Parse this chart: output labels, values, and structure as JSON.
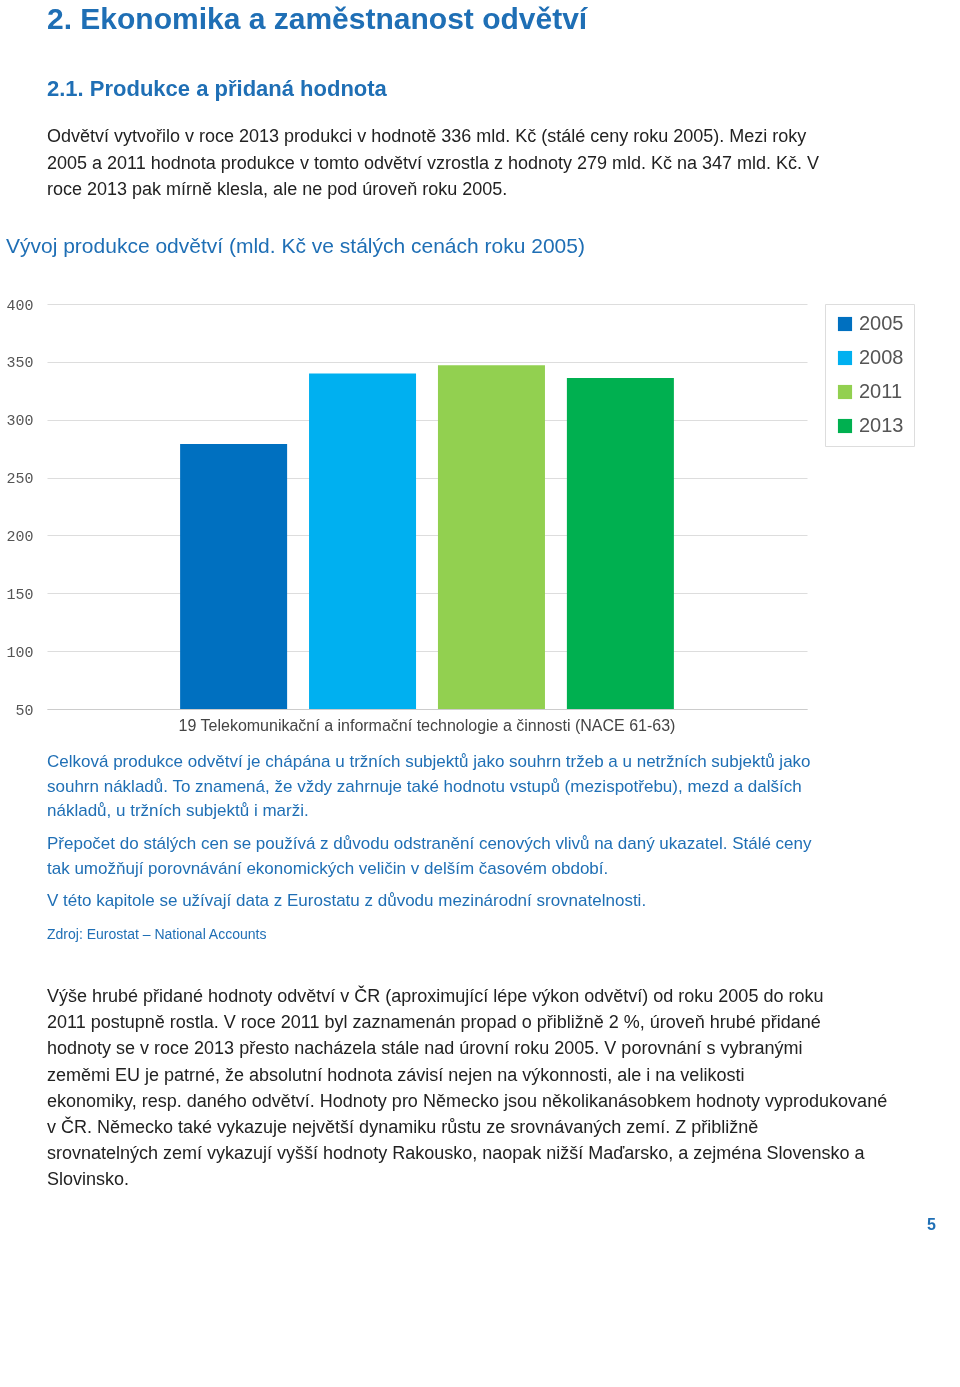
{
  "chart_data": {
    "type": "bar",
    "title": "Vývoj produkce odvětví (mld. Kč ve stálých cenách roku 2005)",
    "categories": [
      "19 Telekomunikační a informační technologie a činnosti (NACE 61-63)"
    ],
    "series": [
      {
        "name": "2005",
        "color": "#0070c0",
        "values": [
          279
        ]
      },
      {
        "name": "2008",
        "color": "#00b0f0",
        "values": [
          340
        ]
      },
      {
        "name": "2011",
        "color": "#92d050",
        "values": [
          347
        ]
      },
      {
        "name": "2013",
        "color": "#00b050",
        "values": [
          336
        ]
      }
    ],
    "ylim": [
      50,
      400
    ],
    "yticks": [
      50,
      100,
      150,
      200,
      250,
      300,
      350,
      400
    ],
    "grid": "y",
    "legend": "right",
    "annotations": [
      "2. Ekonomika a zaměstnanost odvětví",
      "2.1. Produkce a přidaná hodnota",
      "Odvětví vytvořilo v roce 2013 produkci v hodnotě 336 mld. Kč (stálé ceny roku 2005). Mezi roky 2005 a 2011 hodnota produkce v tomto odvětví vzrostla z hodnoty 279 mld. Kč na 347 mld. Kč. V roce 2013 pak mírně klesla, ale ne pod úroveň roku 2005.",
      "Celková produkce odvětví je chápána u tržních subjektů jako souhrn tržeb a u netržních subjektů jako souhrn nákladů. To znamená, že vždy zahrnuje také hodnotu vstupů (mezispotřebu), mezd a dalších nákladů, u tržních subjektů i marži.",
      "Přepočet do stálých cen se používá z důvodu odstranění cenových vlivů na daný ukazatel. Stálé ceny tak umožňují porovnávání ekonomických veličin v delším časovém období.",
      "V této kapitole se užívají data z Eurostatu z důvodu mezinárodní srovnatelnosti.",
      "Zdroj: Eurostat – National Accounts",
      "Výše hrubé přidané hodnoty odvětví v ČR (aproximující lépe výkon odvětví) od roku 2005 do roku 2011 postupně rostla. V roce 2011 byl zaznamenán propad o přibližně 2 %, úroveň hrubé přidané hodnoty se v roce 2013 přesto nacházela stále nad úrovní roku 2005. V porovnání s vybranými zeměmi EU je patrné, že absolutní hodnota závisí nejen na výkonnosti, ale i na velikosti ekonomiky, resp. daného odvětví. Hodnoty pro Německo jsou několikanásobkem hodnoty vyprodukované v ČR. Německo také vykazuje největší dynamiku růstu ze srovnávaných zemí. Z přibližně srovnatelných zemí vykazují vyšší hodnoty Rakousko, naopak nižší Maďarsko, a zejména Slovensko a Slovinsko.",
      "5"
    ]
  }
}
